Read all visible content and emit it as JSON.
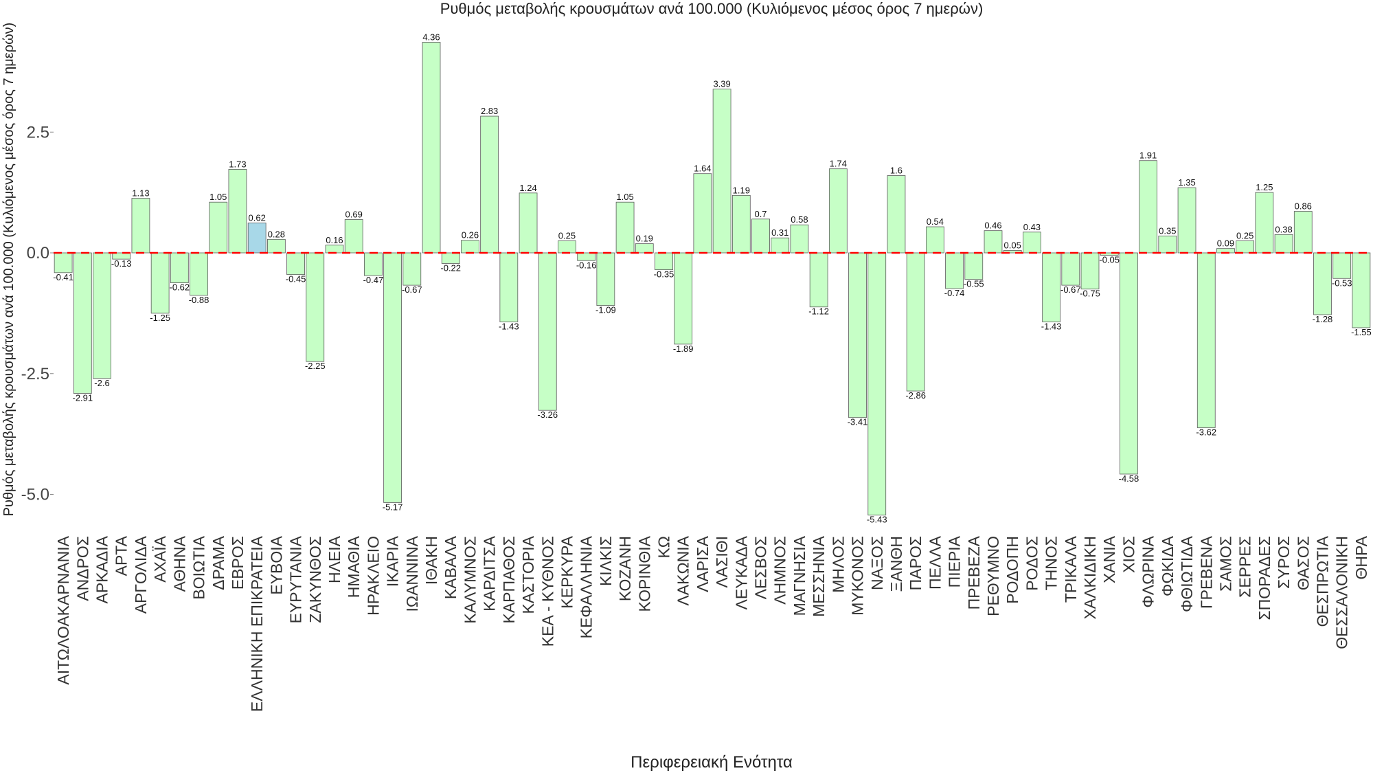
{
  "chart_data": {
    "type": "bar",
    "title": "Ρυθμός μεταβολής κρουσμάτων ανά 100.000 (Κυλιόμενος μέσος όρος 7 ημερών)",
    "xlabel": "Περιφερειακή Ενότητα",
    "ylabel": "Ρυθμός μεταβολής κρουσμάτων ανά 100.000 (Κυλιόμενος μέσος όρος 7 ημερών)",
    "ylim": [
      -5.8,
      4.6
    ],
    "yticks": [
      -5.0,
      -2.5,
      0.0,
      2.5
    ],
    "ytick_labels": [
      "-5.0",
      "-2.5",
      "0.0",
      "2.5"
    ],
    "grid": false,
    "reference_line": {
      "y": 0,
      "style": "dashed",
      "color": "#ff0000"
    },
    "bar_color": "#c6ffc6",
    "highlight_color": "#a8d8e8",
    "highlight_category": "ΕΛΛΗΝΙΚΗ ΕΠΙΚΡΑΤΕΙΑ",
    "categories": [
      "ΑΙΤΩΛΟΑΚΑΡΝΑΝΙΑ",
      "ΑΝΔΡΟΣ",
      "ΑΡΚΑΔΙΑ",
      "ΑΡΤΑ",
      "ΑΡΓΟΛΙΔΑ",
      "ΑΧΑΪΑ",
      "ΑΘΗΝΑ",
      "ΒΟΙΩΤΙΑ",
      "ΔΡΑΜΑ",
      "ΕΒΡΟΣ",
      "ΕΛΛΗΝΙΚΗ ΕΠΙΚΡΑΤΕΙΑ",
      "ΕΥΒΟΙΑ",
      "ΕΥΡΥΤΑΝΙΑ",
      "ΖΑΚΥΝΘΟΣ",
      "ΗΛΕΙΑ",
      "ΗΜΑΘΙΑ",
      "ΗΡΑΚΛΕΙΟ",
      "ΙΚΑΡΙΑ",
      "ΙΩΑΝΝΙΝΑ",
      "ΙΘΑΚΗ",
      "ΚΑΒΑΛΑ",
      "ΚΑΛΥΜΝΟΣ",
      "ΚΑΡΔΙΤΣΑ",
      "ΚΑΡΠΑΘΟΣ",
      "ΚΑΣΤΟΡΙΑ",
      "ΚΕΑ - ΚΥΘΝΟΣ",
      "ΚΕΡΚΥΡΑ",
      "ΚΕΦΑΛΛΗΝΙΑ",
      "ΚΙΛΚΙΣ",
      "ΚΟΖΑΝΗ",
      "ΚΟΡΙΝΘΙΑ",
      "ΚΩ",
      "ΛΑΚΩΝΙΑ",
      "ΛΑΡΙΣΑ",
      "ΛΑΣΙΘΙ",
      "ΛΕΥΚΑΔΑ",
      "ΛΕΣΒΟΣ",
      "ΛΗΜΝΟΣ",
      "ΜΑΓΝΗΣΙΑ",
      "ΜΕΣΣΗΝΙΑ",
      "ΜΗΛΟΣ",
      "ΜΥΚΟΝΟΣ",
      "ΝΑΞΟΣ",
      "ΞΑΝΘΗ",
      "ΠΑΡΟΣ",
      "ΠΕΛΛΑ",
      "ΠΙΕΡΙΑ",
      "ΠΡΕΒΕΖΑ",
      "ΡΕΘΥΜΝΟ",
      "ΡΟΔΟΠΗ",
      "ΡΟΔΟΣ",
      "ΤΗΝΟΣ",
      "ΤΡΙΚΑΛΑ",
      "ΧΑΛΚΙΔΙΚΗ",
      "ΧΑΝΙΑ",
      "ΧΙΟΣ",
      "ΦΛΩΡΙΝΑ",
      "ΦΩΚΙΔΑ",
      "ΦΘΙΩΤΙΔΑ",
      "ΓΡΕΒΕΝΑ",
      "ΣΑΜΟΣ",
      "ΣΕΡΡΕΣ",
      "ΣΠΟΡΑΔΕΣ",
      "ΣΥΡΟΣ",
      "ΘΑΣΟΣ",
      "ΘΕΣΠΡΩΤΙΑ",
      "ΘΕΣΣΑΛΟΝΙΚΗ",
      "ΘΗΡΑ"
    ],
    "values": [
      -0.41,
      -2.91,
      -2.6,
      -0.13,
      1.13,
      -1.25,
      -0.62,
      -0.88,
      1.05,
      1.73,
      0.62,
      0.28,
      -0.45,
      -2.25,
      0.16,
      0.69,
      -0.47,
      -5.17,
      -0.67,
      4.36,
      -0.22,
      0.26,
      2.83,
      -1.43,
      1.24,
      -3.26,
      0.25,
      -0.16,
      -1.09,
      1.05,
      0.19,
      -0.35,
      -1.89,
      1.64,
      3.39,
      1.19,
      0.7,
      0.31,
      0.58,
      -1.12,
      1.74,
      -3.41,
      -5.43,
      1.6,
      -2.86,
      0.54,
      -0.74,
      -0.55,
      0.46,
      0.05,
      0.43,
      -1.43,
      -0.67,
      -0.75,
      -0.05,
      -4.58,
      1.91,
      0.35,
      1.35,
      -3.62,
      0.09,
      0.25,
      1.25,
      0.38,
      0.86,
      -1.28,
      -0.53,
      -1.55
    ],
    "value_labels": [
      "-0.41",
      "-2.91",
      "-2.6",
      "-0.13",
      "1.13",
      "-1.25",
      "-0.62",
      "-0.88",
      "1.05",
      "1.73",
      "0.62",
      "0.28",
      "-0.45",
      "-2.25",
      "0.16",
      "0.69",
      "-0.47",
      "-5.17",
      "-0.67",
      "4.36",
      "-0.22",
      "0.26",
      "2.83",
      "-1.43",
      "1.24",
      "-3.26",
      "0.25",
      "-0.16",
      "-1.09",
      "1.05",
      "0.19",
      "-0.35",
      "-1.89",
      "1.64",
      "3.39",
      "1.19",
      "0.7",
      "0.31",
      "0.58",
      "-1.12",
      "1.74",
      "-3.41",
      "-5.43",
      "1.6",
      "-2.86",
      "0.54",
      "-0.74",
      "-0.55",
      "0.46",
      "0.05",
      "0.43",
      "-1.43",
      "-0.67",
      "-0.75",
      "-0.05",
      "-4.58",
      "1.91",
      "0.35",
      "1.35",
      "-3.62",
      "0.09",
      "0.25",
      "1.25",
      "0.38",
      "0.86",
      "-1.28",
      "-0.53",
      "-1.55"
    ]
  }
}
